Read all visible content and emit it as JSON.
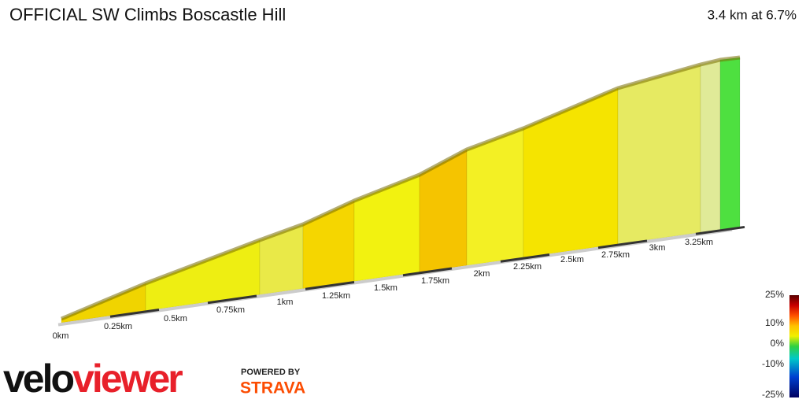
{
  "header": {
    "title": "OFFICIAL SW Climbs Boscastle Hill",
    "summary": "3.4 km at 6.7%"
  },
  "distance_labels": [
    "0km",
    "0.25km",
    "0.5km",
    "0.75km",
    "1km",
    "1.25km",
    "1.5km",
    "1.75km",
    "2km",
    "2.25km",
    "2.5km",
    "2.75km",
    "3km",
    "3.25km"
  ],
  "legend": {
    "labels": [
      "25%",
      "10%",
      "0%",
      "-10%",
      "-25%"
    ]
  },
  "branding": {
    "logo_part1": "velo",
    "logo_part2": "viewer",
    "powered_by": "POWERED BY",
    "strava": "STRAVA"
  }
}
